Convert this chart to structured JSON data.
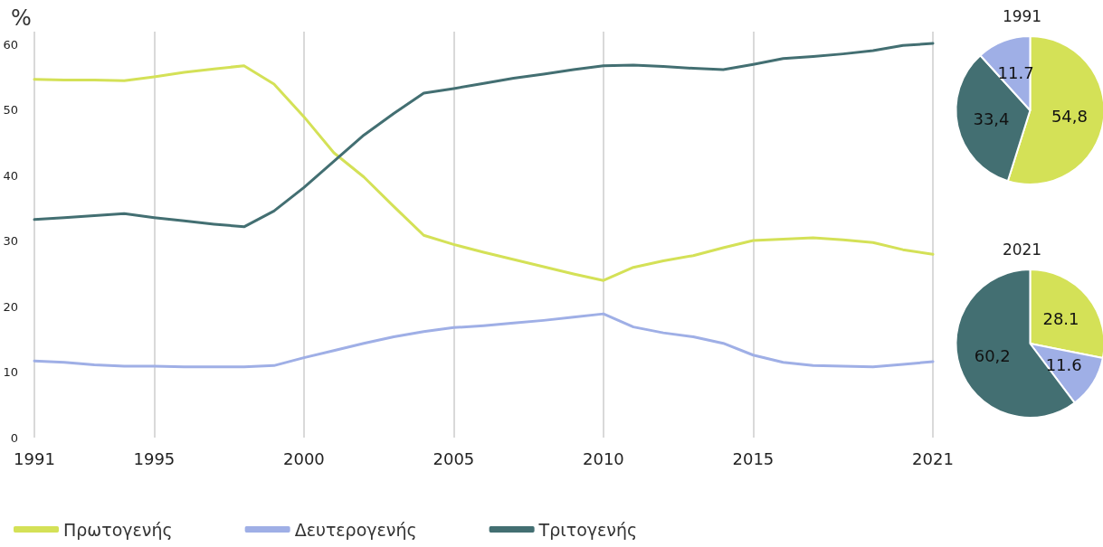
{
  "chart_data": [
    {
      "type": "line",
      "ylabel": "%",
      "x": [
        1991,
        1992,
        1993,
        1994,
        1995,
        1996,
        1997,
        1998,
        1999,
        2000,
        2001,
        2002,
        2003,
        2004,
        2005,
        2006,
        2007,
        2008,
        2009,
        2010,
        2011,
        2012,
        2013,
        2014,
        2015,
        2016,
        2017,
        2018,
        2019,
        2020,
        2021
      ],
      "series": [
        {
          "name": "Πρωτογενής",
          "color": "#d4e157",
          "values": [
            54.7,
            54.6,
            54.6,
            54.5,
            55.1,
            55.8,
            56.3,
            56.8,
            54.0,
            49.0,
            43.5,
            39.8,
            35.3,
            30.9,
            29.5,
            28.3,
            27.2,
            26.1,
            25.0,
            24.0,
            26.0,
            27.0,
            27.8,
            29.0,
            30.1,
            30.3,
            30.5,
            30.2,
            29.8,
            28.7,
            28.0
          ]
        },
        {
          "name": "Δευτερογενής",
          "color": "#9fafe6",
          "values": [
            11.7,
            11.5,
            11.1,
            10.9,
            10.9,
            10.8,
            10.8,
            10.8,
            11.0,
            12.2,
            13.3,
            14.4,
            15.4,
            16.2,
            16.8,
            17.1,
            17.5,
            17.9,
            18.4,
            18.9,
            16.9,
            16.0,
            15.4,
            14.4,
            12.6,
            11.5,
            11.0,
            10.9,
            10.8,
            11.2,
            11.6
          ]
        },
        {
          "name": "Τριτογενής",
          "color": "#436f72",
          "values": [
            33.3,
            33.6,
            33.9,
            34.2,
            33.6,
            33.1,
            32.6,
            32.2,
            34.6,
            38.2,
            42.2,
            46.2,
            49.5,
            52.6,
            53.3,
            54.1,
            54.9,
            55.5,
            56.2,
            56.8,
            56.9,
            56.7,
            56.4,
            56.2,
            57.0,
            57.9,
            58.2,
            58.6,
            59.1,
            59.9,
            60.2
          ]
        }
      ],
      "xlim": [
        1991,
        2021
      ],
      "xticks": [
        1991,
        1995,
        2000,
        2005,
        2010,
        2015,
        2021
      ],
      "ylim": [
        0,
        62
      ],
      "yticks": [
        0,
        10,
        20,
        30,
        40,
        50,
        60
      ],
      "grid": "x",
      "legend": "bottom",
      "marker": "none",
      "line_style": "solid"
    },
    {
      "type": "pie",
      "title": "1991",
      "categories": [
        null,
        null,
        null
      ],
      "values": [
        54.8,
        33.4,
        11.7
      ],
      "colors": [
        "#d4e157",
        "#436f72",
        "#9fafe6"
      ],
      "value_labels": [
        "54,8",
        "33,4",
        "11.7"
      ]
    },
    {
      "type": "pie",
      "title": "2021",
      "categories": [
        null,
        null,
        null
      ],
      "values": [
        28.1,
        11.6,
        60.2
      ],
      "colors": [
        "#d4e157",
        "#9fafe6",
        "#436f72"
      ],
      "value_labels": [
        "28.1",
        "11.6",
        "60,2"
      ]
    }
  ]
}
